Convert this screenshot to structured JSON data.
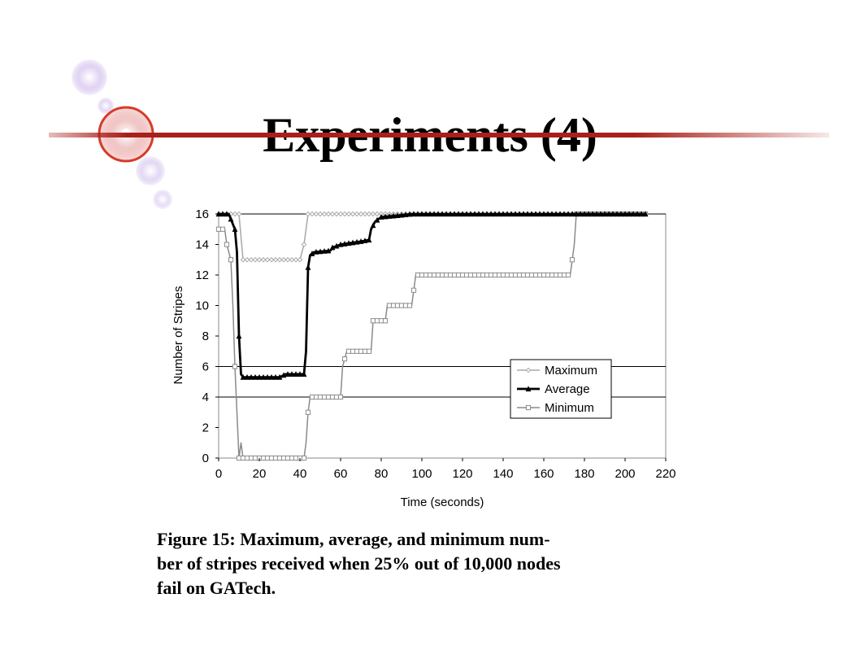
{
  "slide": {
    "title": "Experiments (4)",
    "caption_lines": [
      "Figure 15:  Maximum, average, and minimum num-",
      "ber of stripes received when 25% out of 10,000 nodes",
      "fail on GATech."
    ]
  },
  "colors": {
    "title_rule": "#a8201a",
    "maximum": "#a8a8a8",
    "average": "#000000",
    "minimum": "#8a8a8a"
  },
  "chart_data": {
    "type": "line",
    "xlabel": "Time (seconds)",
    "ylabel": "Number of Stripes",
    "xlim": [
      0,
      220
    ],
    "ylim": [
      0,
      16
    ],
    "x_ticks": [
      0,
      20,
      40,
      60,
      80,
      100,
      120,
      140,
      160,
      180,
      200,
      220
    ],
    "y_ticks": [
      0,
      2,
      4,
      6,
      8,
      10,
      12,
      14,
      16
    ],
    "reference_lines_y": [
      4,
      6,
      16
    ],
    "legend_position": "middle-right",
    "series": [
      {
        "name": "Maximum",
        "marker": "diamond",
        "points": [
          [
            0,
            16
          ],
          [
            10,
            16
          ],
          [
            12,
            13
          ],
          [
            40,
            13
          ],
          [
            42,
            14
          ],
          [
            44,
            16
          ],
          [
            210,
            16
          ]
        ]
      },
      {
        "name": "Average",
        "marker": "triangle",
        "points": [
          [
            0,
            16
          ],
          [
            5,
            16
          ],
          [
            8,
            15
          ],
          [
            9,
            13.5
          ],
          [
            10,
            8
          ],
          [
            11,
            5.5
          ],
          [
            12,
            5.3
          ],
          [
            30,
            5.3
          ],
          [
            33,
            5.5
          ],
          [
            42,
            5.5
          ],
          [
            43,
            7
          ],
          [
            44,
            12.5
          ],
          [
            45,
            13.3
          ],
          [
            47,
            13.5
          ],
          [
            55,
            13.6
          ],
          [
            56,
            13.8
          ],
          [
            60,
            14
          ],
          [
            65,
            14.1
          ],
          [
            70,
            14.2
          ],
          [
            74,
            14.3
          ],
          [
            75,
            15
          ],
          [
            77,
            15.5
          ],
          [
            80,
            15.8
          ],
          [
            88,
            15.9
          ],
          [
            95,
            16
          ],
          [
            210,
            16
          ]
        ]
      },
      {
        "name": "Minimum",
        "marker": "square",
        "points": [
          [
            0,
            15
          ],
          [
            3,
            15
          ],
          [
            4,
            14
          ],
          [
            6,
            13
          ],
          [
            7,
            10
          ],
          [
            8,
            6
          ],
          [
            9,
            3
          ],
          [
            10,
            0
          ],
          [
            11,
            1
          ],
          [
            12,
            0
          ],
          [
            42,
            0
          ],
          [
            43,
            1
          ],
          [
            44,
            3
          ],
          [
            45,
            4
          ],
          [
            60,
            4
          ],
          [
            61,
            6
          ],
          [
            63,
            7
          ],
          [
            75,
            7
          ],
          [
            76,
            9
          ],
          [
            82,
            9
          ],
          [
            83,
            10
          ],
          [
            95,
            10
          ],
          [
            96,
            11
          ],
          [
            97,
            12
          ],
          [
            173,
            12
          ],
          [
            174,
            13
          ],
          [
            175,
            14
          ],
          [
            176,
            16
          ],
          [
            210,
            16
          ]
        ]
      }
    ]
  }
}
